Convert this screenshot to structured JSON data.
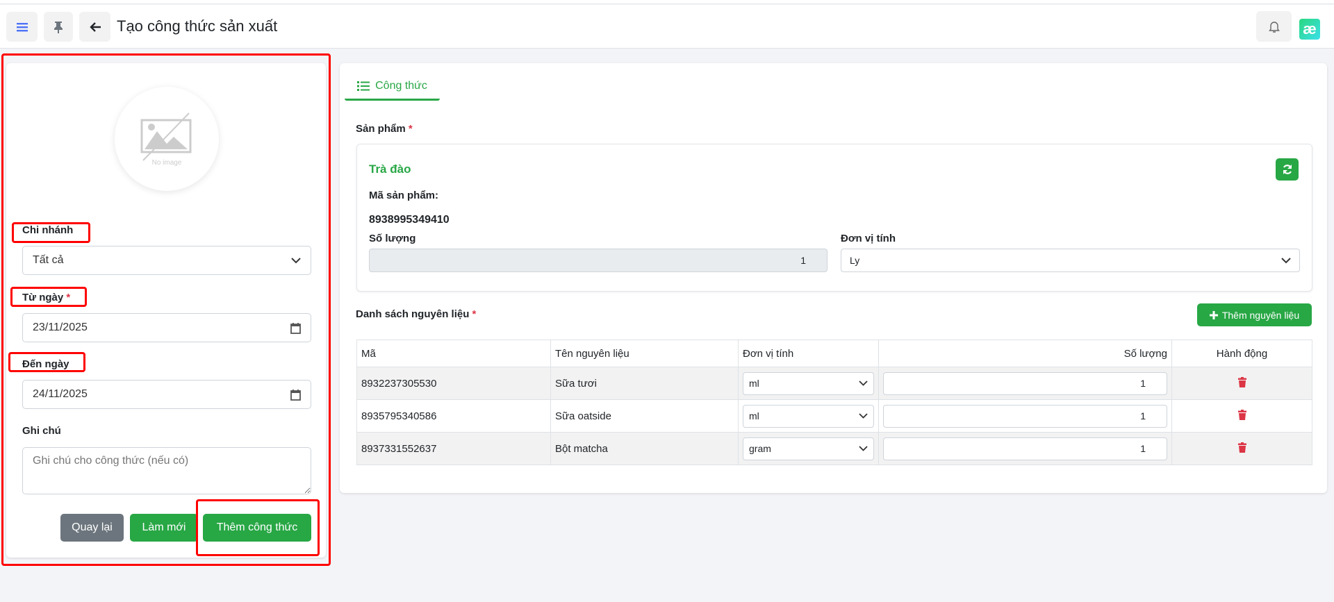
{
  "header": {
    "title": "Tạo công thức sản xuất",
    "menu_icon": "hamburger-icon",
    "pin_icon": "pin-icon",
    "back_icon": "arrow-left-icon",
    "bell_icon": "bell-icon",
    "logo_text": "æ"
  },
  "left": {
    "no_image": "No image",
    "branch_label": "Chi nhánh",
    "branch_value": "Tất cả",
    "from_label": "Từ ngày",
    "from_value": "23/11/2025",
    "to_label": "Đến ngày",
    "to_value": "24/11/2025",
    "note_label": "Ghi chú",
    "note_placeholder": "Ghi chú cho công thức (nếu có)",
    "back_btn": "Quay lại",
    "reset_btn": "Làm mới",
    "add_btn": "Thêm công thức",
    "required": "*"
  },
  "right": {
    "tab": "Công thức",
    "product_label": "Sản phẩm",
    "product_name": "Trà đào",
    "code_label": "Mã sản phẩm:",
    "code_value": "8938995349410",
    "qty_label": "Số lượng",
    "qty_value": "1",
    "unit_label": "Đơn vị tính",
    "unit_value": "Ly",
    "list_label": "Danh sách nguyên liệu",
    "add_ing_btn": "Thêm nguyên liệu",
    "columns": [
      "Mã",
      "Tên nguyên liệu",
      "Đơn vị tính",
      "Số lượng",
      "Hành động"
    ],
    "rows": [
      {
        "code": "8932237305530",
        "name": "Sữa tươi",
        "unit": "ml",
        "qty": "1"
      },
      {
        "code": "8935795340586",
        "name": "Sữa oatside",
        "unit": "ml",
        "qty": "1"
      },
      {
        "code": "8937331552637",
        "name": "Bột matcha",
        "unit": "gram",
        "qty": "1"
      }
    ]
  },
  "colors": {
    "accent": "#28a745",
    "danger": "#dc3545",
    "annotation": "#ff0000"
  }
}
